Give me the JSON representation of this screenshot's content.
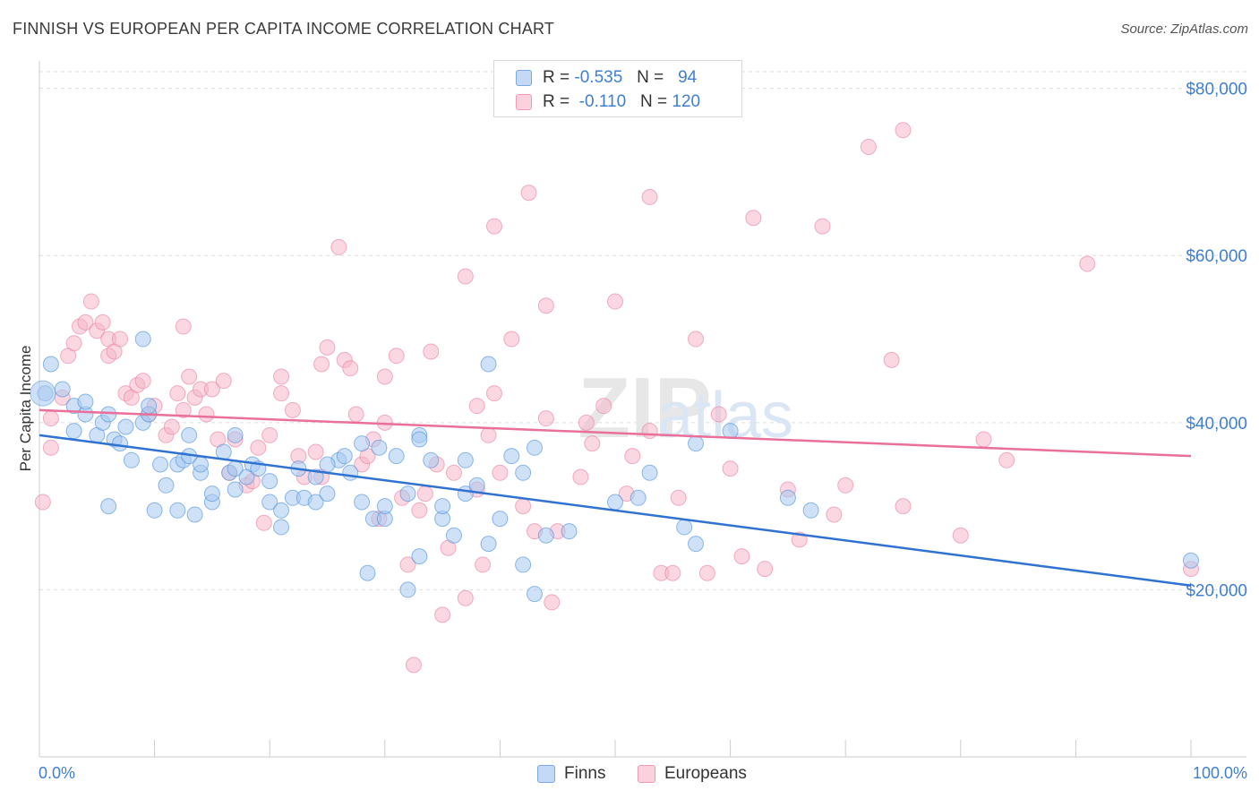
{
  "title": "FINNISH VS EUROPEAN PER CAPITA INCOME CORRELATION CHART",
  "source": "Source: ZipAtlas.com",
  "watermark": "ZIPatlas",
  "legend_top": {
    "rows": [
      {
        "r_label": "R =",
        "r_value": "-0.535",
        "n_label": "N =",
        "n_value": "94",
        "color": "#a7c8f0"
      },
      {
        "r_label": "R =",
        "r_value": "-0.110",
        "n_label": "N =",
        "n_value": "120",
        "color": "#f5b6c9"
      }
    ]
  },
  "legend_bottom": [
    {
      "label": "Finns",
      "color": "#a7c8f0"
    },
    {
      "label": "Europeans",
      "color": "#f5b6c9"
    }
  ],
  "chart_data": {
    "type": "scatter",
    "title": "FINNISH VS EUROPEAN PER CAPITA INCOME CORRELATION CHART",
    "xlabel": "",
    "ylabel": "Per Capita Income",
    "x_tick_labels": [
      "0.0%",
      "100.0%"
    ],
    "y_tick_labels": [
      "$20,000",
      "$40,000",
      "$60,000",
      "$80,000"
    ],
    "y_ticks": [
      20000,
      40000,
      60000,
      80000
    ],
    "xlim": [
      0,
      100
    ],
    "ylim": [
      0,
      82000
    ],
    "grid": true,
    "legend_placement": "top-center and bottom",
    "series": [
      {
        "name": "Finns",
        "color": "#4a8fdc",
        "fill": "#a7c8f0",
        "trend": {
          "x": [
            0,
            100
          ],
          "y": [
            38500,
            20500
          ],
          "color": "#2f72d2"
        },
        "points": [
          [
            0.5,
            43500
          ],
          [
            1,
            47000
          ],
          [
            2,
            44000
          ],
          [
            3,
            42000
          ],
          [
            3,
            39000
          ],
          [
            4,
            41000
          ],
          [
            4,
            42500
          ],
          [
            5,
            38500
          ],
          [
            5.5,
            40000
          ],
          [
            6,
            41000
          ],
          [
            6.5,
            38000
          ],
          [
            7,
            37500
          ],
          [
            7.5,
            39500
          ],
          [
            8,
            35500
          ],
          [
            9,
            40000
          ],
          [
            9,
            50000
          ],
          [
            9.5,
            41000
          ],
          [
            10,
            29500
          ],
          [
            10.5,
            35000
          ],
          [
            11,
            32500
          ],
          [
            12,
            35000
          ],
          [
            12,
            29500
          ],
          [
            12.5,
            35500
          ],
          [
            13,
            38500
          ],
          [
            13.5,
            29000
          ],
          [
            14,
            34000
          ],
          [
            14,
            35000
          ],
          [
            15,
            30500
          ],
          [
            15,
            31500
          ],
          [
            16,
            36500
          ],
          [
            16.5,
            34000
          ],
          [
            17,
            32000
          ],
          [
            17,
            38500
          ],
          [
            18,
            33500
          ],
          [
            18.5,
            35000
          ],
          [
            19,
            34500
          ],
          [
            20,
            33000
          ],
          [
            20,
            30500
          ],
          [
            21,
            29500
          ],
          [
            21,
            27500
          ],
          [
            22,
            31000
          ],
          [
            22.5,
            34500
          ],
          [
            23,
            31000
          ],
          [
            24,
            33500
          ],
          [
            24,
            30500
          ],
          [
            25,
            31500
          ],
          [
            26,
            35500
          ],
          [
            26.5,
            36000
          ],
          [
            27,
            34000
          ],
          [
            28,
            30500
          ],
          [
            28,
            37500
          ],
          [
            28.5,
            22000
          ],
          [
            29,
            28500
          ],
          [
            30,
            28500
          ],
          [
            30,
            30000
          ],
          [
            31,
            36000
          ],
          [
            32,
            31500
          ],
          [
            32,
            20000
          ],
          [
            33,
            24000
          ],
          [
            33,
            38500
          ],
          [
            34,
            35500
          ],
          [
            35,
            28500
          ],
          [
            35,
            30000
          ],
          [
            36,
            26500
          ],
          [
            37,
            35500
          ],
          [
            37,
            31500
          ],
          [
            38,
            32500
          ],
          [
            39,
            47000
          ],
          [
            39,
            25500
          ],
          [
            40,
            28500
          ],
          [
            41,
            36000
          ],
          [
            42,
            34000
          ],
          [
            42,
            23000
          ],
          [
            43,
            37000
          ],
          [
            43,
            19500
          ],
          [
            44,
            26500
          ],
          [
            46,
            27000
          ],
          [
            50,
            30500
          ],
          [
            52,
            31000
          ],
          [
            53,
            34000
          ],
          [
            56,
            27500
          ],
          [
            57,
            25500
          ],
          [
            57,
            37500
          ],
          [
            60,
            39000
          ],
          [
            65,
            31000
          ],
          [
            67,
            29500
          ],
          [
            100,
            23500
          ],
          [
            33,
            38000
          ],
          [
            6,
            30000
          ],
          [
            25,
            35000
          ],
          [
            17,
            34500
          ],
          [
            13,
            36000
          ],
          [
            9.5,
            42000
          ],
          [
            29.5,
            37000
          ]
        ]
      },
      {
        "name": "Europeans",
        "color": "#ea7fa2",
        "fill": "#f5b6c9",
        "trend": {
          "x": [
            0,
            100
          ],
          "y": [
            41500,
            36000
          ],
          "color": "#e8709a"
        },
        "points": [
          [
            0.3,
            30500
          ],
          [
            1,
            37000
          ],
          [
            1,
            40500
          ],
          [
            2,
            43000
          ],
          [
            2.5,
            48000
          ],
          [
            3,
            49500
          ],
          [
            3.5,
            51500
          ],
          [
            4,
            52000
          ],
          [
            4.5,
            54500
          ],
          [
            5,
            51000
          ],
          [
            5.5,
            52000
          ],
          [
            6,
            50000
          ],
          [
            6,
            48000
          ],
          [
            6.5,
            48500
          ],
          [
            7,
            50000
          ],
          [
            7.5,
            43500
          ],
          [
            8,
            43000
          ],
          [
            8.5,
            44500
          ],
          [
            9,
            45000
          ],
          [
            9.5,
            41000
          ],
          [
            10,
            42000
          ],
          [
            11,
            38500
          ],
          [
            11.5,
            39500
          ],
          [
            12,
            43500
          ],
          [
            12.5,
            41500
          ],
          [
            12.5,
            51500
          ],
          [
            13,
            45500
          ],
          [
            13.5,
            43000
          ],
          [
            14,
            44000
          ],
          [
            14.5,
            41000
          ],
          [
            15,
            44000
          ],
          [
            15.5,
            38000
          ],
          [
            16,
            45000
          ],
          [
            16.5,
            34000
          ],
          [
            17,
            38000
          ],
          [
            18,
            32500
          ],
          [
            18.5,
            33000
          ],
          [
            19,
            37000
          ],
          [
            19.5,
            28000
          ],
          [
            20,
            38500
          ],
          [
            21,
            43500
          ],
          [
            21,
            45500
          ],
          [
            22,
            41500
          ],
          [
            22.5,
            36000
          ],
          [
            23,
            33500
          ],
          [
            24,
            36500
          ],
          [
            24.5,
            33500
          ],
          [
            24.5,
            47000
          ],
          [
            25,
            49000
          ],
          [
            26,
            61000
          ],
          [
            26.5,
            47500
          ],
          [
            27,
            46500
          ],
          [
            27.5,
            41000
          ],
          [
            28,
            35000
          ],
          [
            28.5,
            36000
          ],
          [
            29,
            38000
          ],
          [
            29.5,
            28500
          ],
          [
            30,
            40000
          ],
          [
            30,
            45500
          ],
          [
            31,
            48000
          ],
          [
            31.5,
            31000
          ],
          [
            32,
            23000
          ],
          [
            32.5,
            11000
          ],
          [
            33,
            29500
          ],
          [
            33.5,
            31500
          ],
          [
            34,
            48500
          ],
          [
            34.5,
            35000
          ],
          [
            35,
            17000
          ],
          [
            35.5,
            25000
          ],
          [
            36,
            34000
          ],
          [
            37,
            19000
          ],
          [
            37,
            57500
          ],
          [
            38,
            42000
          ],
          [
            38,
            32000
          ],
          [
            38.5,
            23000
          ],
          [
            39,
            38500
          ],
          [
            39.5,
            43500
          ],
          [
            39.5,
            63500
          ],
          [
            40,
            34000
          ],
          [
            41,
            50000
          ],
          [
            42,
            30000
          ],
          [
            42.5,
            67500
          ],
          [
            43,
            27000
          ],
          [
            44,
            54000
          ],
          [
            44,
            40500
          ],
          [
            44.5,
            18500
          ],
          [
            45,
            27000
          ],
          [
            47,
            33500
          ],
          [
            47.5,
            40000
          ],
          [
            48,
            37500
          ],
          [
            49,
            42000
          ],
          [
            50,
            54500
          ],
          [
            51,
            31500
          ],
          [
            51.5,
            36000
          ],
          [
            53,
            39000
          ],
          [
            53,
            67000
          ],
          [
            54,
            22000
          ],
          [
            55,
            22000
          ],
          [
            55.5,
            31000
          ],
          [
            57,
            50000
          ],
          [
            58,
            22000
          ],
          [
            59,
            41000
          ],
          [
            60,
            34500
          ],
          [
            61,
            24000
          ],
          [
            62,
            64500
          ],
          [
            63,
            22500
          ],
          [
            65,
            32000
          ],
          [
            66,
            26000
          ],
          [
            68,
            63500
          ],
          [
            69,
            29000
          ],
          [
            70,
            32500
          ],
          [
            72,
            73000
          ],
          [
            74,
            47500
          ],
          [
            75,
            30000
          ],
          [
            75,
            75000
          ],
          [
            80,
            26500
          ],
          [
            82,
            38000
          ],
          [
            84,
            35500
          ],
          [
            91,
            59000
          ],
          [
            100,
            22500
          ]
        ]
      }
    ]
  }
}
